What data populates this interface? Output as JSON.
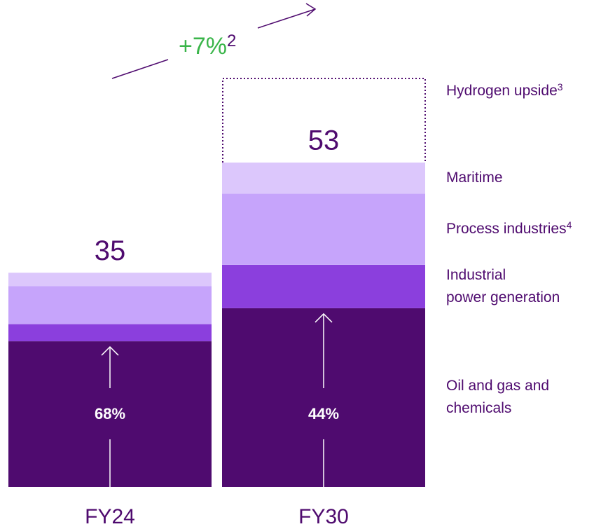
{
  "chart_data": {
    "type": "bar",
    "stacked": true,
    "categories": [
      "FY24",
      "FY30"
    ],
    "series": [
      {
        "name": "Oil and gas and\nchemicals",
        "color": "#4f0b6f",
        "values": [
          23.8,
          29.2
        ]
      },
      {
        "name": "Industrial\npower generation",
        "color": "#8b3fdd",
        "values": [
          2.8,
          7.1
        ]
      },
      {
        "name": "Process industries",
        "footnote": "4",
        "color": "#c6a4fb",
        "values": [
          6.2,
          11.6
        ]
      },
      {
        "name": "Maritime",
        "color": "#dcc7fc",
        "values": [
          2.2,
          5.1
        ]
      }
    ],
    "totals": [
      35,
      53
    ],
    "annotations": [
      "68%",
      "44%"
    ],
    "hydrogen": {
      "name": "Hydrogen upside",
      "footnote": "3"
    },
    "growth": {
      "label": "+7%",
      "footnote": "2",
      "color": "#3ab54a"
    }
  }
}
